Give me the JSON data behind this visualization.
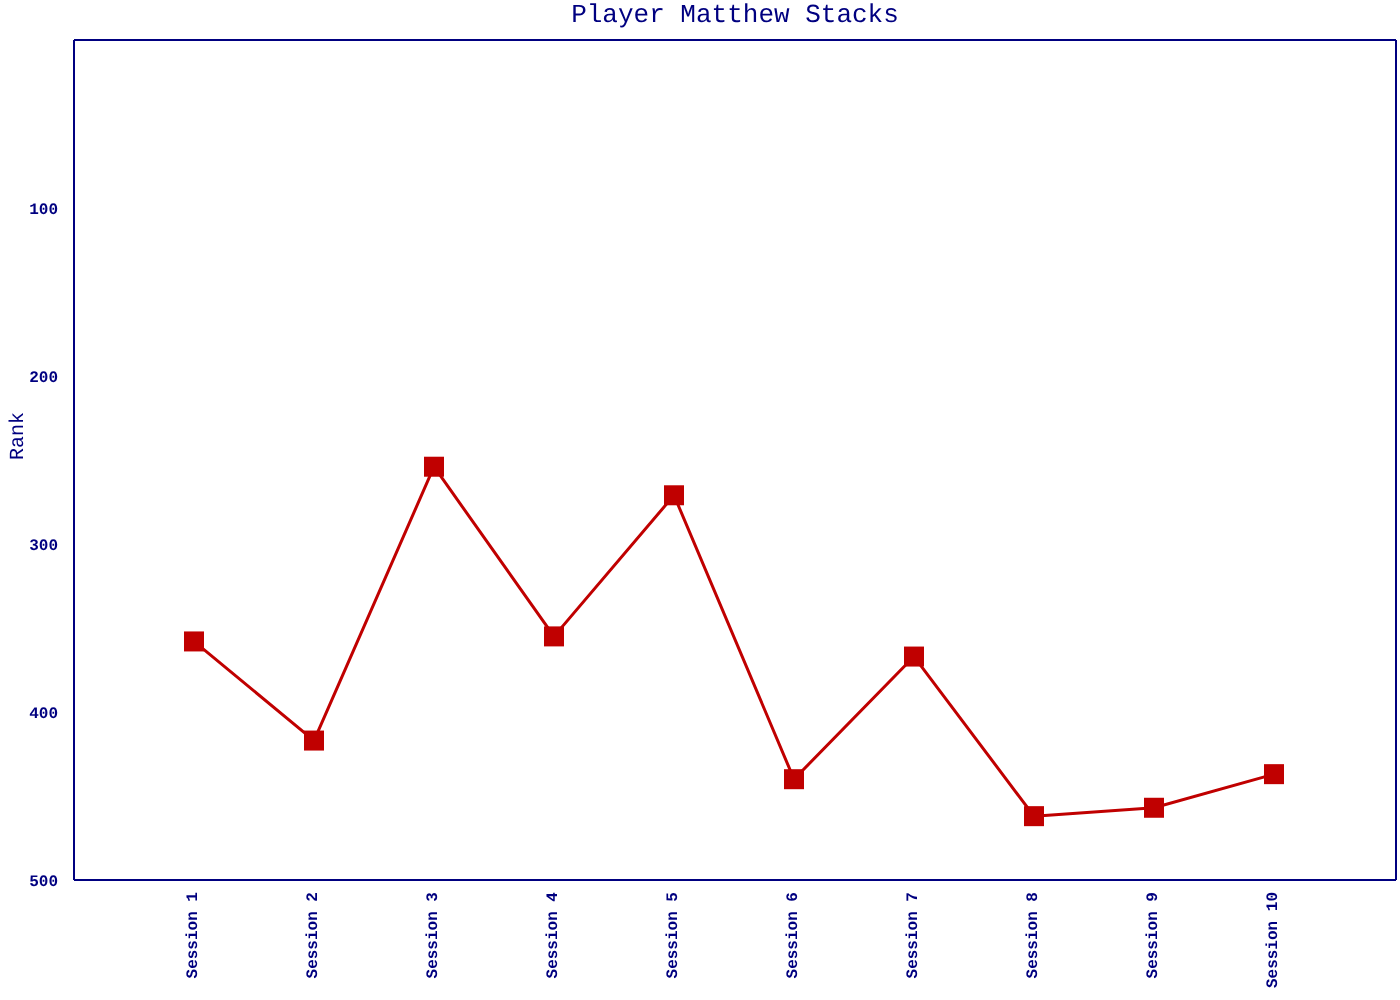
{
  "chart_data": {
    "type": "line",
    "title": "Player Matthew Stacks",
    "ylabel": "Rank",
    "categories": [
      "Session 1",
      "Session 2",
      "Session 3",
      "Session 4",
      "Session 5",
      "Session 6",
      "Session 7",
      "Session 8",
      "Session 9",
      "Session 10"
    ],
    "series": [
      {
        "color": "#c00000",
        "values": [
          358,
          417,
          254,
          355,
          271,
          440,
          367,
          462,
          457,
          437
        ]
      }
    ],
    "ylim": [
      500,
      0
    ],
    "yticks": [
      100,
      200,
      300,
      400,
      500
    ],
    "marker": "square",
    "line_style": "solid",
    "grid": false,
    "legend": false
  }
}
